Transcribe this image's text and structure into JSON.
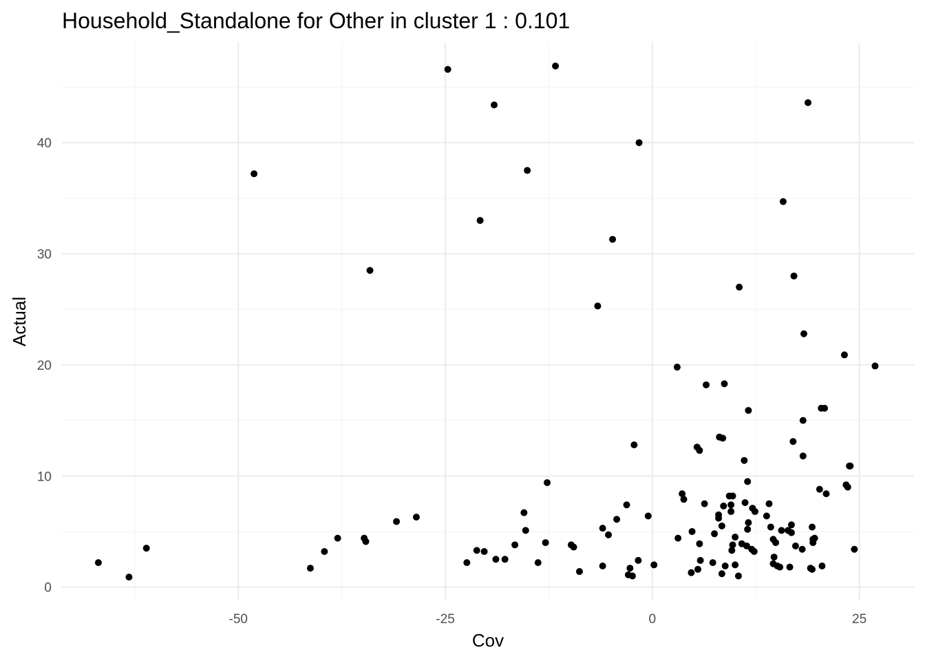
{
  "chart_data": {
    "type": "scatter",
    "title": "Household_Standalone for Other in cluster 1 : 0.101",
    "xlabel": "Cov",
    "ylabel": "Actual",
    "xlim": [
      -71.3,
      31.6
    ],
    "ylim": [
      -1.2,
      49.0
    ],
    "x_ticks": [
      -50,
      -25,
      0,
      25
    ],
    "x_tick_labels": [
      "-50",
      "-25",
      "0",
      "25"
    ],
    "y_ticks": [
      0,
      10,
      20,
      30,
      40
    ],
    "y_tick_labels": [
      "0",
      "10",
      "20",
      "30",
      "40"
    ],
    "grid": true,
    "point_color": "#000000",
    "points": [
      {
        "x": -66.9,
        "y": 2.2
      },
      {
        "x": -63.2,
        "y": 0.9
      },
      {
        "x": -61.1,
        "y": 3.5
      },
      {
        "x": -48.1,
        "y": 37.2
      },
      {
        "x": -41.3,
        "y": 1.7
      },
      {
        "x": -39.6,
        "y": 3.2
      },
      {
        "x": -38.0,
        "y": 4.4
      },
      {
        "x": -34.8,
        "y": 4.4
      },
      {
        "x": -34.6,
        "y": 4.1
      },
      {
        "x": -34.1,
        "y": 28.5
      },
      {
        "x": -30.9,
        "y": 5.9
      },
      {
        "x": -28.5,
        "y": 6.3
      },
      {
        "x": -24.7,
        "y": 46.6
      },
      {
        "x": -22.4,
        "y": 2.2
      },
      {
        "x": -21.2,
        "y": 3.3
      },
      {
        "x": -20.8,
        "y": 33.0
      },
      {
        "x": -20.3,
        "y": 3.2
      },
      {
        "x": -19.1,
        "y": 43.4
      },
      {
        "x": -18.9,
        "y": 2.5
      },
      {
        "x": -17.8,
        "y": 2.5
      },
      {
        "x": -16.6,
        "y": 3.8
      },
      {
        "x": -15.5,
        "y": 6.7
      },
      {
        "x": -15.3,
        "y": 5.1
      },
      {
        "x": -15.1,
        "y": 37.5
      },
      {
        "x": -13.8,
        "y": 2.2
      },
      {
        "x": -12.9,
        "y": 4.0
      },
      {
        "x": -12.7,
        "y": 9.4
      },
      {
        "x": -11.7,
        "y": 46.9
      },
      {
        "x": -9.8,
        "y": 3.8
      },
      {
        "x": -9.5,
        "y": 3.6
      },
      {
        "x": -8.8,
        "y": 1.4
      },
      {
        "x": -6.6,
        "y": 25.3
      },
      {
        "x": -6.0,
        "y": 5.3
      },
      {
        "x": -6.0,
        "y": 1.9
      },
      {
        "x": -5.3,
        "y": 4.7
      },
      {
        "x": -4.8,
        "y": 31.3
      },
      {
        "x": -4.3,
        "y": 6.1
      },
      {
        "x": -3.1,
        "y": 7.4
      },
      {
        "x": -2.9,
        "y": 1.1
      },
      {
        "x": -2.7,
        "y": 1.7
      },
      {
        "x": -2.4,
        "y": 1.0
      },
      {
        "x": -2.2,
        "y": 12.8
      },
      {
        "x": -1.7,
        "y": 2.4
      },
      {
        "x": -1.6,
        "y": 40.0
      },
      {
        "x": -0.5,
        "y": 6.4
      },
      {
        "x": 0.2,
        "y": 2.0
      },
      {
        "x": 3.0,
        "y": 19.8
      },
      {
        "x": 3.1,
        "y": 4.4
      },
      {
        "x": 3.6,
        "y": 8.4
      },
      {
        "x": 3.8,
        "y": 7.9
      },
      {
        "x": 4.7,
        "y": 1.3
      },
      {
        "x": 4.8,
        "y": 5.0
      },
      {
        "x": 5.4,
        "y": 12.6
      },
      {
        "x": 5.5,
        "y": 1.6
      },
      {
        "x": 5.7,
        "y": 12.3
      },
      {
        "x": 5.7,
        "y": 3.9
      },
      {
        "x": 5.8,
        "y": 2.4
      },
      {
        "x": 6.3,
        "y": 7.5
      },
      {
        "x": 6.5,
        "y": 18.2
      },
      {
        "x": 7.3,
        "y": 2.2
      },
      {
        "x": 7.5,
        "y": 4.8
      },
      {
        "x": 8.0,
        "y": 6.5
      },
      {
        "x": 8.0,
        "y": 6.2
      },
      {
        "x": 8.1,
        "y": 13.5
      },
      {
        "x": 8.4,
        "y": 1.2
      },
      {
        "x": 8.4,
        "y": 5.5
      },
      {
        "x": 8.5,
        "y": 13.4
      },
      {
        "x": 8.6,
        "y": 7.3
      },
      {
        "x": 8.7,
        "y": 18.3
      },
      {
        "x": 8.8,
        "y": 1.9
      },
      {
        "x": 9.3,
        "y": 8.2
      },
      {
        "x": 9.5,
        "y": 7.4
      },
      {
        "x": 9.5,
        "y": 6.8
      },
      {
        "x": 9.6,
        "y": 3.3
      },
      {
        "x": 9.7,
        "y": 8.2
      },
      {
        "x": 9.7,
        "y": 3.8
      },
      {
        "x": 10.0,
        "y": 4.5
      },
      {
        "x": 10.0,
        "y": 2.0
      },
      {
        "x": 10.4,
        "y": 1.0
      },
      {
        "x": 10.5,
        "y": 27.0
      },
      {
        "x": 10.8,
        "y": 3.9
      },
      {
        "x": 11.1,
        "y": 11.4
      },
      {
        "x": 11.2,
        "y": 7.6
      },
      {
        "x": 11.4,
        "y": 3.7
      },
      {
        "x": 11.5,
        "y": 5.2
      },
      {
        "x": 11.5,
        "y": 9.5
      },
      {
        "x": 11.6,
        "y": 5.8
      },
      {
        "x": 11.6,
        "y": 15.9
      },
      {
        "x": 12.0,
        "y": 3.4
      },
      {
        "x": 12.1,
        "y": 7.1
      },
      {
        "x": 12.3,
        "y": 3.2
      },
      {
        "x": 12.4,
        "y": 6.8
      },
      {
        "x": 13.8,
        "y": 6.4
      },
      {
        "x": 14.1,
        "y": 7.5
      },
      {
        "x": 14.3,
        "y": 5.4
      },
      {
        "x": 14.6,
        "y": 4.3
      },
      {
        "x": 14.6,
        "y": 2.1
      },
      {
        "x": 14.7,
        "y": 2.7
      },
      {
        "x": 14.9,
        "y": 4.0
      },
      {
        "x": 15.1,
        "y": 1.9
      },
      {
        "x": 15.4,
        "y": 1.8
      },
      {
        "x": 15.6,
        "y": 5.1
      },
      {
        "x": 15.8,
        "y": 34.7
      },
      {
        "x": 16.4,
        "y": 5.1
      },
      {
        "x": 16.6,
        "y": 1.8
      },
      {
        "x": 16.8,
        "y": 5.6
      },
      {
        "x": 16.8,
        "y": 4.9
      },
      {
        "x": 17.0,
        "y": 13.1
      },
      {
        "x": 17.1,
        "y": 28.0
      },
      {
        "x": 17.3,
        "y": 3.7
      },
      {
        "x": 18.1,
        "y": 3.4
      },
      {
        "x": 18.2,
        "y": 15.0
      },
      {
        "x": 18.2,
        "y": 11.8
      },
      {
        "x": 18.3,
        "y": 22.8
      },
      {
        "x": 18.8,
        "y": 43.6
      },
      {
        "x": 19.1,
        "y": 1.7
      },
      {
        "x": 19.3,
        "y": 1.6
      },
      {
        "x": 19.3,
        "y": 5.4
      },
      {
        "x": 19.4,
        "y": 4.3
      },
      {
        "x": 19.4,
        "y": 4.0
      },
      {
        "x": 19.6,
        "y": 4.4
      },
      {
        "x": 20.2,
        "y": 8.8
      },
      {
        "x": 20.4,
        "y": 16.1
      },
      {
        "x": 20.5,
        "y": 1.9
      },
      {
        "x": 20.8,
        "y": 16.1
      },
      {
        "x": 21.0,
        "y": 8.4
      },
      {
        "x": 23.2,
        "y": 20.9
      },
      {
        "x": 23.4,
        "y": 9.2
      },
      {
        "x": 23.6,
        "y": 9.0
      },
      {
        "x": 23.8,
        "y": 10.9
      },
      {
        "x": 23.9,
        "y": 10.9
      },
      {
        "x": 24.4,
        "y": 3.4
      },
      {
        "x": 26.9,
        "y": 19.9
      }
    ]
  }
}
